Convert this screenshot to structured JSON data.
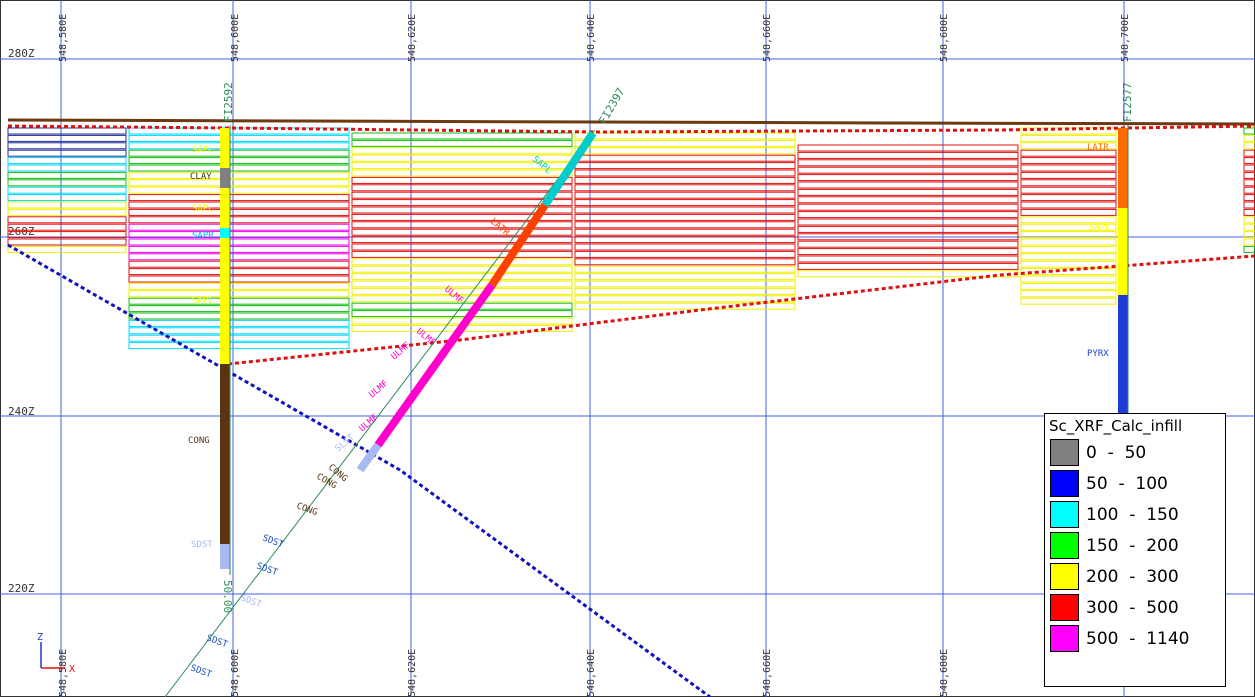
{
  "view": {
    "easting_labels": [
      "548,580E",
      "548,600E",
      "548,620E",
      "548,640E",
      "548,660E",
      "548,680E",
      "548,700E"
    ],
    "elevation_labels": [
      "280Z",
      "260Z",
      "240Z",
      "220Z"
    ],
    "axis_triad": {
      "z": "Z",
      "x": "X"
    }
  },
  "drillholes": [
    {
      "id": "FI2592",
      "depth_label": "50.00",
      "lith": [
        "SAPL",
        "CLAY",
        "SAPL",
        "SAPR",
        "SAPL",
        "CONG",
        "SDST"
      ]
    },
    {
      "id": "FI2397",
      "lith": [
        "SAPL",
        "LATR",
        "ULMF",
        "ULMF",
        "ULMF",
        "ULMF",
        "ULMF",
        "SLST",
        "CONG",
        "CONG",
        "CONG",
        "SDST",
        "SDST",
        "SDST",
        "SDST",
        "SDST"
      ]
    },
    {
      "id": "FI2577",
      "lith": [
        "LATR",
        "SAPL",
        "PYRX"
      ]
    }
  ],
  "legend": {
    "title": "Sc_XRF_Calc_infill",
    "items": [
      {
        "label": "0  -  50",
        "color": "#808080"
      },
      {
        "label": "50  -  100",
        "color": "#0000ff"
      },
      {
        "label": "100  -  150",
        "color": "#00ffff"
      },
      {
        "label": "150  -  200",
        "color": "#00ff00"
      },
      {
        "label": "200  -  300",
        "color": "#ffff00"
      },
      {
        "label": "300  -  500",
        "color": "#ff0000"
      },
      {
        "label": "500  -  1140",
        "color": "#ff00ff"
      }
    ]
  },
  "colors": {
    "grid": "#4060e0",
    "topography": "#6b3a10",
    "dashed_red": "#e01010",
    "dashed_blue": "#1010c0",
    "cong": "#5a3312",
    "sdst": "#a8b8f0",
    "hole_trace": "#2e8b57"
  }
}
